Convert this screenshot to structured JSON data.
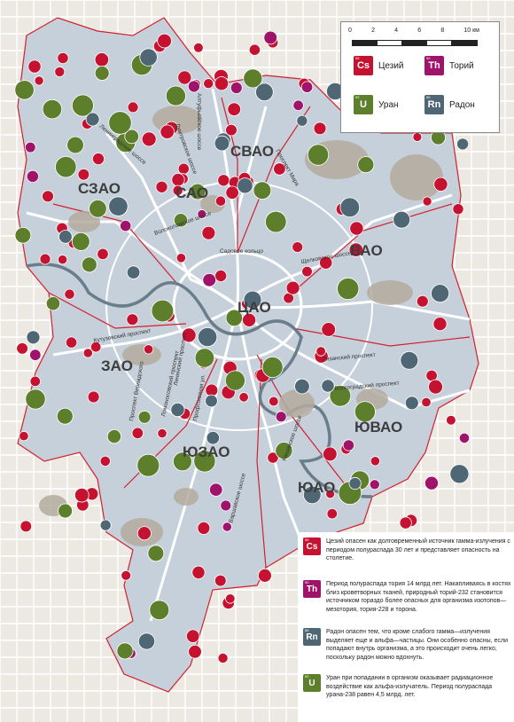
{
  "scale": {
    "ticks": [
      "0",
      "2",
      "4",
      "6",
      "8",
      "10 км"
    ]
  },
  "legend": [
    {
      "symbol": "Cs",
      "number": "55",
      "name": "Цезий",
      "color": "#c41230",
      "icon": "cesium-tile-icon"
    },
    {
      "symbol": "Th",
      "number": "90",
      "name": "Торий",
      "color": "#a0136b",
      "icon": "thorium-tile-icon"
    },
    {
      "symbol": "U",
      "number": "92",
      "name": "Уран",
      "color": "#5d7f2c",
      "icon": "uranium-tile-icon"
    },
    {
      "symbol": "Rn",
      "number": "86",
      "name": "Радон",
      "color": "#4f6675",
      "icon": "radon-tile-icon"
    }
  ],
  "districts": [
    "СЗАО",
    "САО",
    "СВАО",
    "ВАО",
    "ЦАО",
    "ЗАО",
    "ЮЗАО",
    "ЮВАО",
    "ЮАО"
  ],
  "roads": [
    "Алтуфьевское шоссе",
    "Дмитровское шоссе",
    "Ленинградское шоссе",
    "Волоколамское шоссе",
    "Проспект Мира",
    "Щелковское шоссе",
    "Садовое кольцо",
    "Кутузовский проспект",
    "Рязанский проспект",
    "Волгоградский проспект",
    "Ленинский проспект",
    "Профсоюзная ул.",
    "Варшавское шоссе",
    "Каширское шоссе",
    "Ломоносовский проспект",
    "Проспект Вернадского"
  ],
  "notes": [
    {
      "symbol": "Cs",
      "number": "55",
      "color": "#c41230",
      "text": "Цезий опасен как долговременный источник гамма-излучения с периодом полураспада 30 лет и представляет опасность на столетие."
    },
    {
      "symbol": "Th",
      "number": "90",
      "color": "#a0136b",
      "text": "Период полураспада тория 14 млрд лет. Накапливаясь в костях близ кроветворных тканей, природный торий-232 становится источником гораздо более опасных для организма изотопов—мезотория, тория-228 и торона."
    },
    {
      "symbol": "Rn",
      "number": "86",
      "color": "#4f6675",
      "text": "Радон опасен тем, что кроме слабого гамма—излучения выделяет еще и альфа—частицы. Они особенно опасны, если попадают внутрь организма, а это происходит очень легко, поскольку радон можно вдохнуть."
    },
    {
      "symbol": "U",
      "number": "92",
      "color": "#5d7f2c",
      "text": "Уран при попадании в организм оказывает радиационное воздействие как альфа-излучатель. Период полураспада урана-238 равен 4,5 млрд. лет."
    }
  ],
  "map_points": [
    {
      "type": "Cs",
      "count": 118
    },
    {
      "type": "Th",
      "count": 20
    },
    {
      "type": "U",
      "count": 46
    },
    {
      "type": "Rn",
      "count": 30
    }
  ],
  "colors": {
    "Cs": "#c41230",
    "Th": "#a0136b",
    "U": "#5d7f2c",
    "Rn": "#4f6675",
    "city": "#c6d0db",
    "boundary": "#d2202e",
    "park": "#b3aa9e",
    "river": "#6a7d8a",
    "grid": "#ffffff"
  }
}
